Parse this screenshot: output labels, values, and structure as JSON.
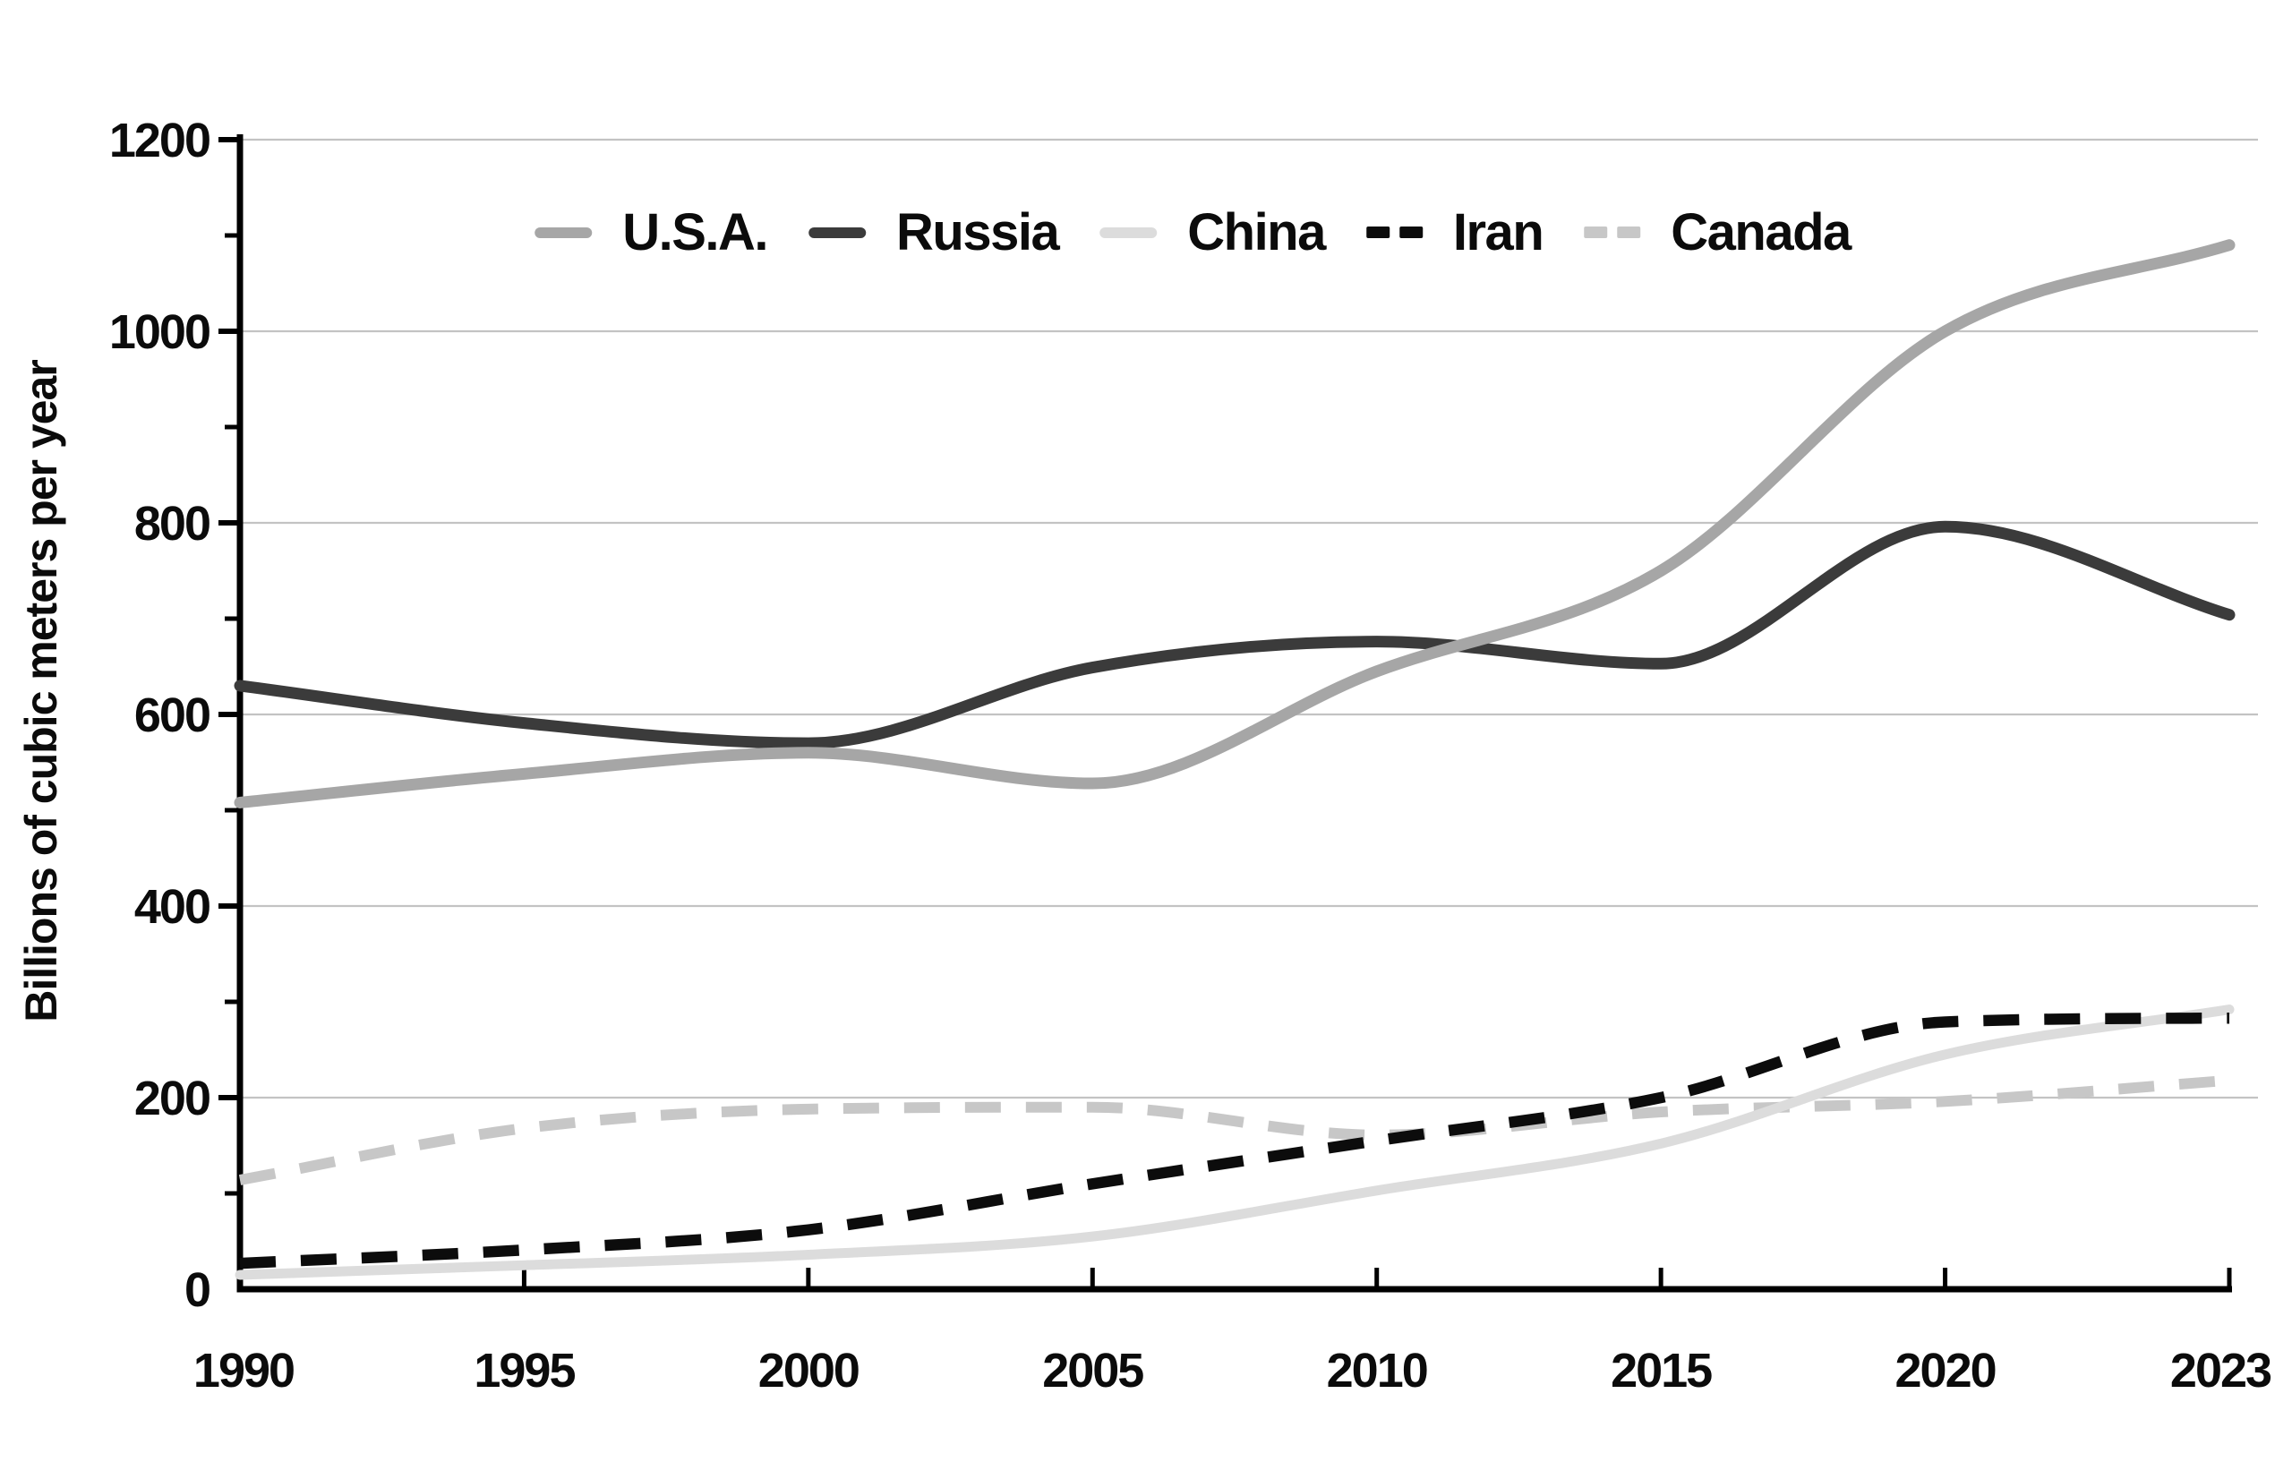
{
  "chart_data": {
    "type": "line",
    "title": "",
    "xlabel": "",
    "ylabel": "Billions of cubic meters per year",
    "categories": [
      "1990",
      "1995",
      "2000",
      "2005",
      "2010",
      "2015",
      "2020",
      "2023"
    ],
    "y_ticks": [
      0,
      200,
      400,
      600,
      800,
      1000,
      1200
    ],
    "ylim": [
      0,
      1200
    ],
    "grid": "horizontal-major",
    "minor_ticks_every": 100,
    "legend_position": "top-center",
    "series": [
      {
        "name": "U.S.A.",
        "color": "#a6a6a6",
        "style": "solid",
        "width": 13,
        "values": [
          508,
          538,
          560,
          528,
          645,
          750,
          1000,
          1090
        ]
      },
      {
        "name": "Russia",
        "color": "#3b3b3b",
        "style": "solid",
        "width": 13,
        "values": [
          630,
          591,
          570,
          649,
          676,
          653,
          796,
          704
        ]
      },
      {
        "name": "China",
        "color": "#dcdcdc",
        "style": "solid",
        "width": 11,
        "values": [
          15,
          25,
          36,
          55,
          103,
          152,
          245,
          292
        ]
      },
      {
        "name": "Iran",
        "color": "#0c0c0c",
        "style": "dashed",
        "width": 12.5,
        "values": [
          27,
          41,
          62,
          110,
          155,
          200,
          279,
          283
        ]
      },
      {
        "name": "Canada",
        "color": "#c7c7c7",
        "style": "dashed",
        "width": 12,
        "values": [
          114,
          168,
          188,
          190,
          161,
          185,
          196,
          218
        ]
      }
    ],
    "draw_order": [
      "Russia",
      "U.S.A.",
      "Canada",
      "China",
      "Iran"
    ]
  },
  "axis": {
    "color": "#000000",
    "gridline_color": "#c3c3c3",
    "label_color": "#0b0b0b"
  }
}
